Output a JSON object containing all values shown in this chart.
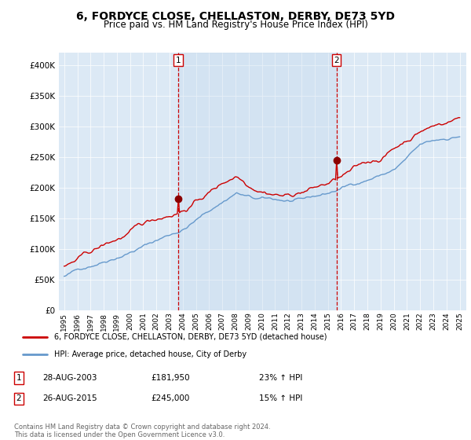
{
  "title": "6, FORDYCE CLOSE, CHELLASTON, DERBY, DE73 5YD",
  "subtitle": "Price paid vs. HM Land Registry's House Price Index (HPI)",
  "legend_line1": "6, FORDYCE CLOSE, CHELLASTON, DERBY, DE73 5YD (detached house)",
  "legend_line2": "HPI: Average price, detached house, City of Derby",
  "sale1_label": "1",
  "sale1_date_str": "28-AUG-2003",
  "sale1_price_str": "£181,950",
  "sale1_pct_str": "23% ↑ HPI",
  "sale1_year": 2003.65,
  "sale1_price": 181950,
  "sale2_label": "2",
  "sale2_date_str": "26-AUG-2015",
  "sale2_price_str": "£245,000",
  "sale2_pct_str": "15% ↑ HPI",
  "sale2_year": 2015.65,
  "sale2_price": 245000,
  "footer1": "Contains HM Land Registry data © Crown copyright and database right 2024.",
  "footer2": "This data is licensed under the Open Government Licence v3.0.",
  "ylim": [
    0,
    420000
  ],
  "yticks": [
    0,
    50000,
    100000,
    150000,
    200000,
    250000,
    300000,
    350000,
    400000
  ],
  "ytick_labels": [
    "£0",
    "£50K",
    "£100K",
    "£150K",
    "£200K",
    "£250K",
    "£300K",
    "£350K",
    "£400K"
  ],
  "background_color": "#dce9f5",
  "shade_color": "#c5d9ee",
  "red_color": "#cc0000",
  "blue_color": "#6699cc",
  "marker_color": "#8B0000",
  "vline_color": "#cc0000",
  "title_fontsize": 10,
  "subtitle_fontsize": 8.5
}
